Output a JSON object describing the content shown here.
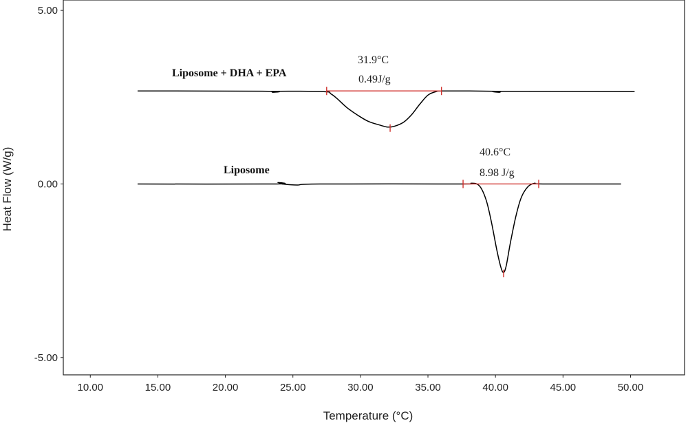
{
  "chart_data": {
    "type": "line",
    "xlabel": "Temperature (°C)",
    "ylabel": "Heat Flow (W/g)",
    "xlim": [
      8.0,
      54.0
    ],
    "ylim": [
      -5.5,
      5.3
    ],
    "x_ticks": [
      "10.00",
      "15.00",
      "20.00",
      "25.00",
      "30.00",
      "35.00",
      "40.00",
      "45.00",
      "50.00"
    ],
    "x_tick_values": [
      10,
      15,
      20,
      25,
      30,
      35,
      40,
      45,
      50
    ],
    "y_ticks": [
      "5.00",
      "0.00",
      "-5.00"
    ],
    "y_tick_values": [
      5,
      0,
      -5
    ],
    "grid": false,
    "series": [
      {
        "name": "Liposome + DHA + EPA",
        "color": "#000000",
        "points": [
          [
            13.5,
            2.68
          ],
          [
            23.2,
            2.67
          ],
          [
            23.5,
            2.64
          ],
          [
            23.8,
            2.67
          ],
          [
            27.3,
            2.66
          ],
          [
            27.8,
            2.6
          ],
          [
            28.3,
            2.45
          ],
          [
            29.0,
            2.2
          ],
          [
            29.8,
            1.98
          ],
          [
            30.6,
            1.8
          ],
          [
            31.4,
            1.7
          ],
          [
            32.0,
            1.64
          ],
          [
            32.5,
            1.66
          ],
          [
            33.2,
            1.78
          ],
          [
            33.8,
            2.0
          ],
          [
            34.4,
            2.3
          ],
          [
            35.0,
            2.56
          ],
          [
            35.6,
            2.66
          ],
          [
            36.2,
            2.68
          ],
          [
            40.0,
            2.67
          ],
          [
            40.3,
            2.64
          ],
          [
            40.6,
            2.67
          ],
          [
            50.3,
            2.66
          ]
        ]
      },
      {
        "name": "Liposome",
        "color": "#000000",
        "points": [
          [
            13.5,
            0.0
          ],
          [
            23.6,
            0.0
          ],
          [
            23.9,
            0.04
          ],
          [
            24.2,
            0.0
          ],
          [
            25.3,
            -0.03
          ],
          [
            27.0,
            0.0
          ],
          [
            37.6,
            0.0
          ],
          [
            38.2,
            0.02
          ],
          [
            38.8,
            -0.05
          ],
          [
            39.3,
            -0.45
          ],
          [
            39.7,
            -1.1
          ],
          [
            40.1,
            -1.9
          ],
          [
            40.4,
            -2.4
          ],
          [
            40.6,
            -2.55
          ],
          [
            40.8,
            -2.35
          ],
          [
            41.1,
            -1.7
          ],
          [
            41.5,
            -0.95
          ],
          [
            41.9,
            -0.4
          ],
          [
            42.4,
            -0.08
          ],
          [
            42.9,
            0.02
          ],
          [
            43.5,
            0.0
          ],
          [
            49.3,
            0.0
          ]
        ]
      }
    ],
    "annotations": [
      {
        "series": "Liposome + DHA + EPA",
        "peak_label": "31.9°C",
        "enthalpy_label": "0.49J/g",
        "peak": [
          32.2,
          1.64
        ],
        "onset": 27.5,
        "endset": 36.0,
        "baseline": 2.68
      },
      {
        "series": "Liposome",
        "peak_label": "40.6°C",
        "enthalpy_label": "8.98 J/g",
        "peak": [
          40.6,
          -2.55
        ],
        "onset": 37.6,
        "endset": 43.2,
        "baseline": 0.0
      }
    ],
    "annotation_color": "#d0312d"
  }
}
